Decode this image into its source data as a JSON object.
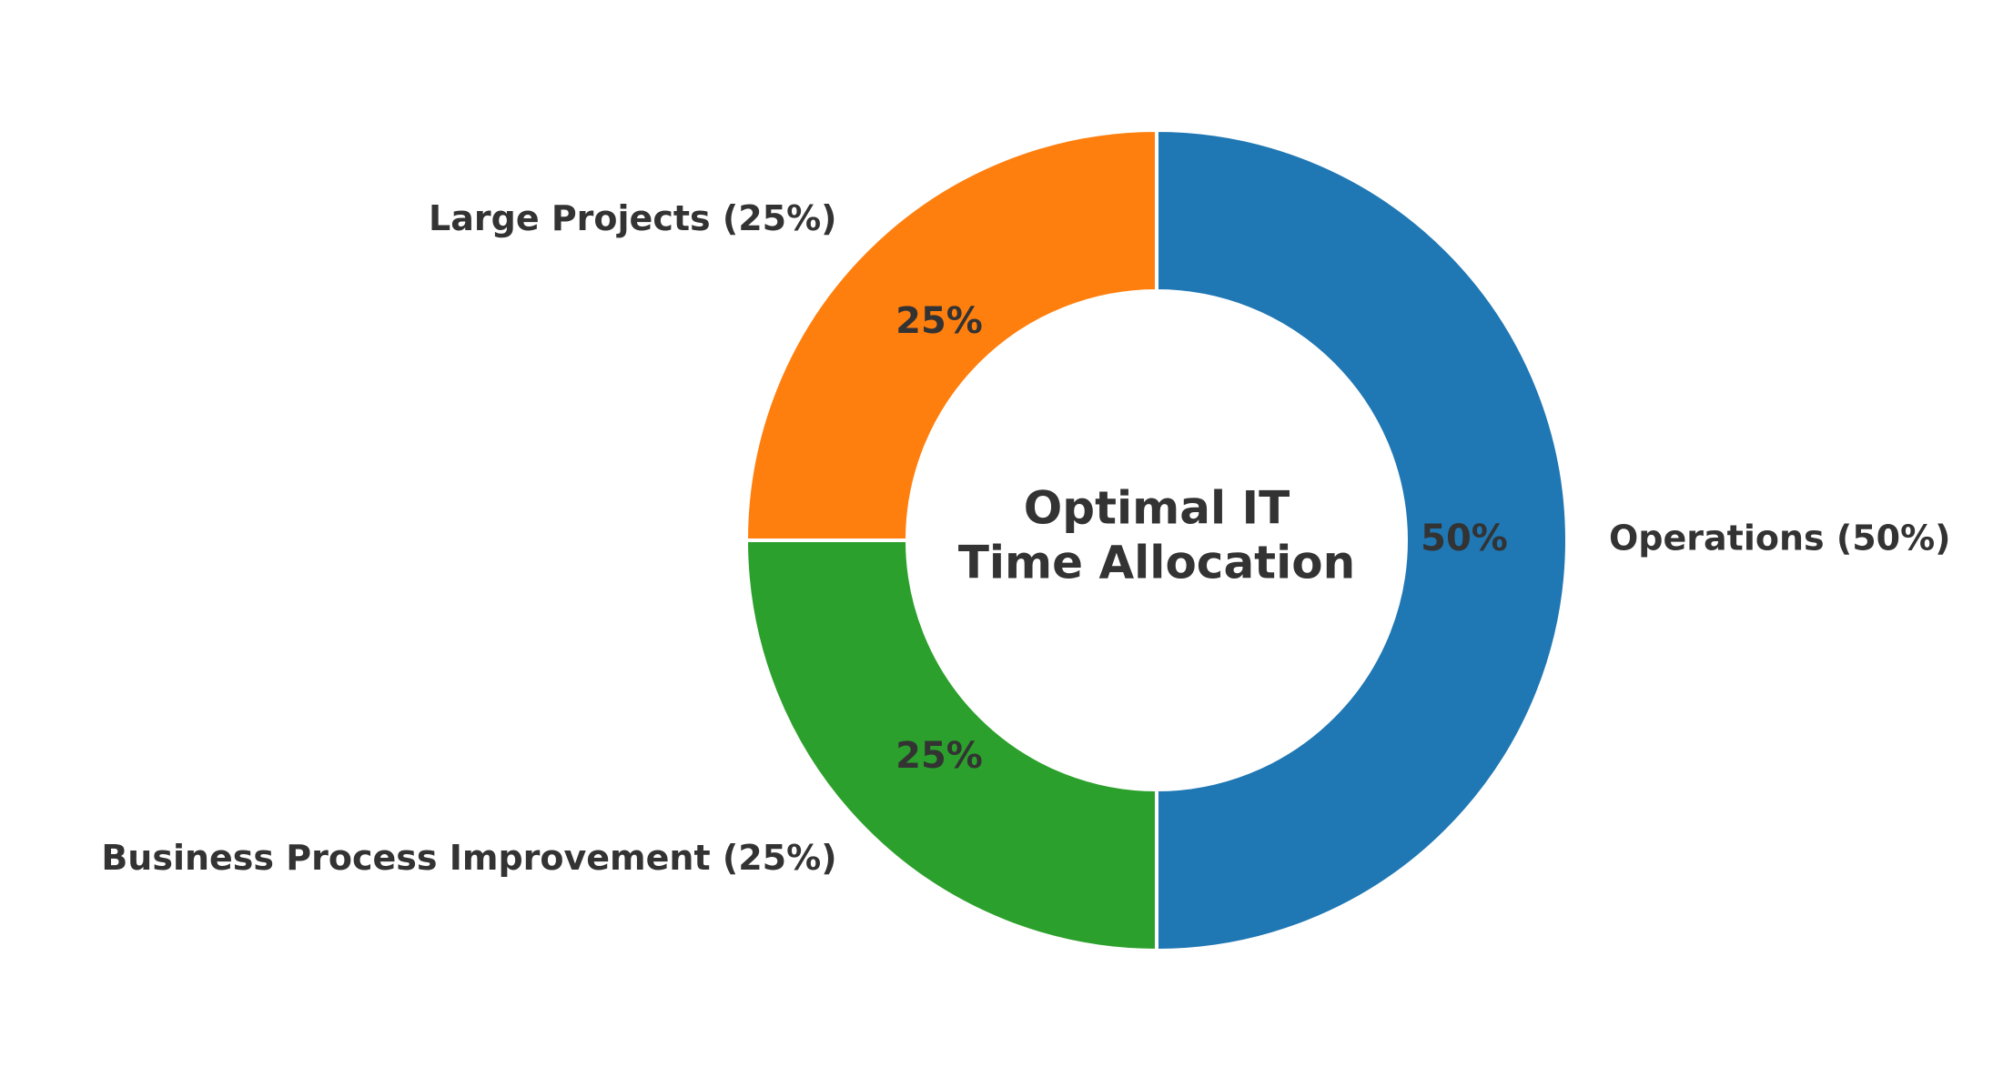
{
  "chart_data": {
    "type": "donut",
    "title": [
      "Optimal IT",
      "Time Allocation"
    ],
    "categories": [
      "Operations (50%)",
      "Business Process Improvement (25%)",
      "Large Projects (25%)"
    ],
    "values": [
      50,
      25,
      25
    ],
    "value_labels": [
      "50%",
      "25%",
      "25%"
    ],
    "colors": [
      "#1f77b4",
      "#2ca02c",
      "#ff7f0e"
    ]
  }
}
